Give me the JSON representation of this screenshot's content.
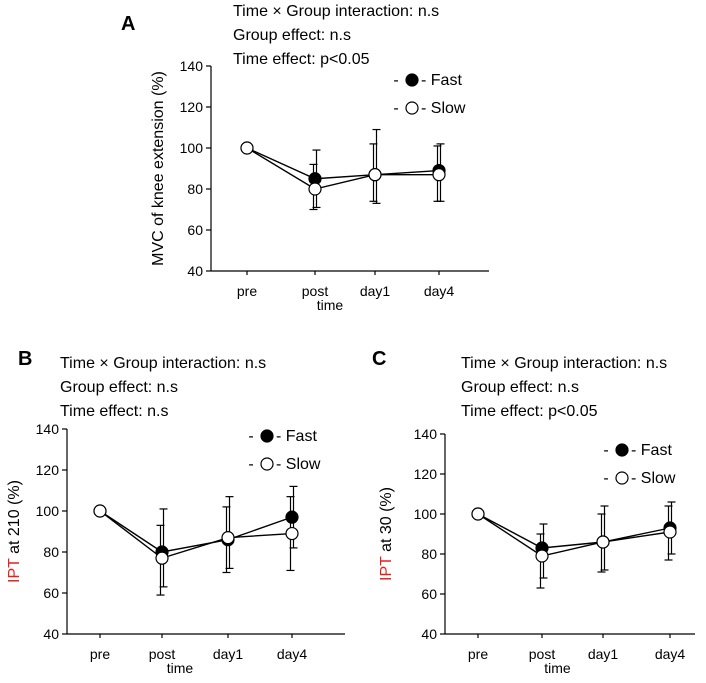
{
  "chart_data": [
    {
      "panel": "A",
      "type": "line",
      "stats": [
        "Time × Group interaction: n.s",
        "Group effect: n.s",
        "Time effect: p<0.05"
      ],
      "ylabel": "MVC of knee extension (%)",
      "ylabel_highlight": "",
      "xlabel": "time",
      "categories": [
        "pre",
        "post",
        "day1",
        "day4"
      ],
      "ylim": [
        40,
        140
      ],
      "yticks": [
        40,
        60,
        80,
        100,
        120,
        140
      ],
      "series": [
        {
          "name": "Fast",
          "marker": "filled",
          "values": [
            100,
            85,
            87,
            89
          ],
          "err_high": [
            100,
            99,
            109,
            102
          ],
          "err_low": [
            100,
            71,
            73,
            74
          ]
        },
        {
          "name": "Slow",
          "marker": "open",
          "values": [
            100,
            80,
            87,
            87
          ],
          "err_high": [
            100,
            92,
            102,
            101
          ],
          "err_low": [
            100,
            70,
            74,
            74
          ]
        }
      ],
      "legend": [
        {
          "dash": "-",
          "label": "- Fast"
        },
        {
          "dash": "-",
          "label": "- Slow"
        }
      ]
    },
    {
      "panel": "B",
      "type": "line",
      "stats": [
        "Time × Group interaction: n.s",
        "Group effect: n.s",
        "Time effect: n.s"
      ],
      "ylabel": " at 210 (%)",
      "ylabel_highlight": "IPT",
      "xlabel": "time",
      "categories": [
        "pre",
        "post",
        "day1",
        "day4"
      ],
      "ylim": [
        40,
        140
      ],
      "yticks": [
        40,
        60,
        80,
        100,
        120,
        140
      ],
      "series": [
        {
          "name": "Fast",
          "marker": "filled",
          "values": [
            100,
            80,
            86,
            97
          ],
          "err_high": [
            100,
            101,
            107,
            112
          ],
          "err_low": [
            100,
            63,
            72,
            82
          ]
        },
        {
          "name": "Slow",
          "marker": "open",
          "values": [
            100,
            77,
            87,
            89
          ],
          "err_high": [
            100,
            93,
            102,
            107
          ],
          "err_low": [
            100,
            59,
            70,
            71
          ]
        }
      ],
      "legend": [
        {
          "dash": "-",
          "label": "- Fast"
        },
        {
          "dash": "-",
          "label": "- Slow"
        }
      ]
    },
    {
      "panel": "C",
      "type": "line",
      "stats": [
        "Time × Group interaction: n.s",
        "Group effect: n.s",
        "Time effect: p<0.05"
      ],
      "ylabel": " at 30 (%)",
      "ylabel_highlight": "IPT",
      "xlabel": "time",
      "categories": [
        "pre",
        "post",
        "day1",
        "day4"
      ],
      "ylim": [
        40,
        140
      ],
      "yticks": [
        40,
        60,
        80,
        100,
        120,
        140
      ],
      "series": [
        {
          "name": "Fast",
          "marker": "filled",
          "values": [
            100,
            83,
            86,
            93
          ],
          "err_high": [
            100,
            95,
            104,
            106
          ],
          "err_low": [
            100,
            68,
            72,
            80
          ]
        },
        {
          "name": "Slow",
          "marker": "open",
          "values": [
            100,
            79,
            86,
            91
          ],
          "err_high": [
            100,
            90,
            100,
            104
          ],
          "err_low": [
            100,
            63,
            71,
            77
          ]
        }
      ],
      "legend": [
        {
          "dash": "-",
          "label": "- Fast"
        },
        {
          "dash": "-",
          "label": "- Slow"
        }
      ]
    }
  ],
  "colors": {
    "axis": "#000000",
    "highlight": "#e8201c",
    "marker_fill": "#000000",
    "marker_open": "#ffffff"
  }
}
